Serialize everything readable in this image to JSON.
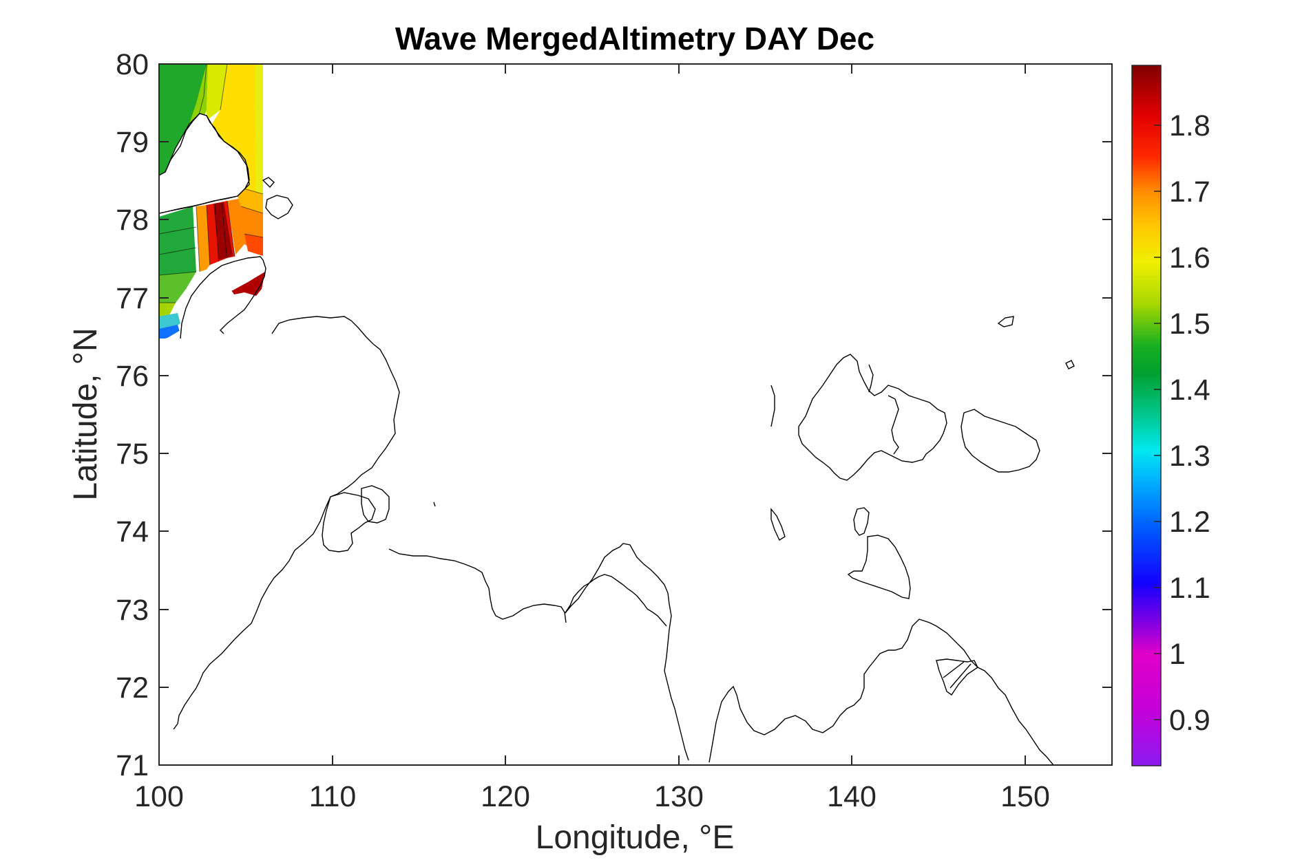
{
  "chart_data": {
    "type": "heatmap",
    "title": "Wave MergedAltimetry DAY Dec",
    "xlabel": "Longitude, °E",
    "ylabel": "Latitude, °N",
    "xlim": [
      100,
      155
    ],
    "ylim": [
      71,
      80
    ],
    "xticks": [
      "100",
      "110",
      "120",
      "130",
      "140",
      "150"
    ],
    "yticks": [
      "71",
      "72",
      "73",
      "74",
      "75",
      "76",
      "77",
      "78",
      "79",
      "80"
    ],
    "colorbar": {
      "range": [
        0.83,
        1.89
      ],
      "ticks": [
        "0.9",
        "1",
        "1.1",
        "1.2",
        "1.3",
        "1.4",
        "1.5",
        "1.6",
        "1.7",
        "1.8"
      ],
      "colormap": "jet-like"
    },
    "field_region": {
      "lon": [
        100,
        106
      ],
      "lat": [
        76.5,
        80
      ]
    },
    "field_samples": [
      {
        "lon": 100.5,
        "lat": 79.5,
        "value": 1.43
      },
      {
        "lon": 102.5,
        "lat": 79.5,
        "value": 1.52
      },
      {
        "lon": 104.5,
        "lat": 79.5,
        "value": 1.59
      },
      {
        "lon": 105.5,
        "lat": 78.5,
        "value": 1.62
      },
      {
        "lon": 103.3,
        "lat": 77.8,
        "value": 1.86
      },
      {
        "lon": 101.0,
        "lat": 77.8,
        "value": 1.43
      },
      {
        "lon": 100.5,
        "lat": 77.2,
        "value": 1.47
      },
      {
        "lon": 100.5,
        "lat": 76.6,
        "value": 1.18
      },
      {
        "lon": 105.5,
        "lat": 77.6,
        "value": 1.7
      }
    ]
  },
  "colors": {
    "land": "#ffffff",
    "coastline": "#000000",
    "axes": "#262626"
  }
}
